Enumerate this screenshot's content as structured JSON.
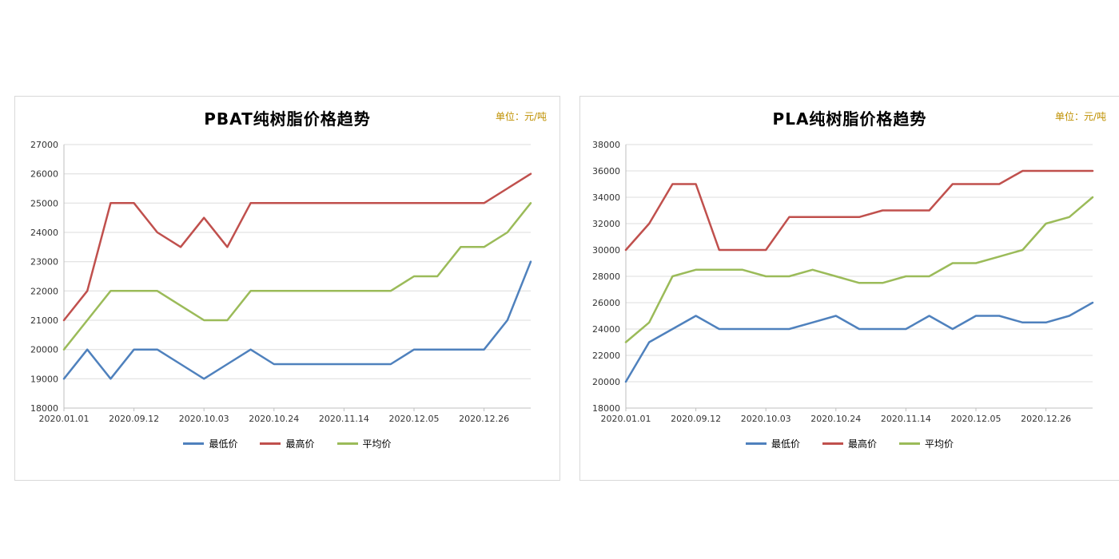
{
  "page": {
    "background": "#FFFFFF"
  },
  "chart_data": [
    {
      "type": "line",
      "title": "PBAT纯树脂价格趋势",
      "unit_label": "单位：元/吨",
      "ylim": [
        18000,
        27000
      ],
      "ytick_step": 1000,
      "grid": true,
      "legend_position": "bottom",
      "x_tick_labels": [
        "2020.01.01",
        "2020.09.12",
        "2020.10.03",
        "2020.10.24",
        "2020.11.14",
        "2020.12.05",
        "2020.12.26"
      ],
      "x_tick_indices": [
        0,
        3,
        6,
        9,
        12,
        15,
        18
      ],
      "series": [
        {
          "name": "最低价",
          "color": "#4F81BD",
          "values": [
            19000,
            20000,
            19000,
            20000,
            20000,
            19500,
            19000,
            19500,
            20000,
            19500,
            19500,
            19500,
            19500,
            19500,
            19500,
            20000,
            20000,
            20000,
            20000,
            21000,
            23000
          ]
        },
        {
          "name": "最高价",
          "color": "#C0504D",
          "values": [
            21000,
            22000,
            25000,
            25000,
            24000,
            23500,
            24500,
            23500,
            25000,
            25000,
            25000,
            25000,
            25000,
            25000,
            25000,
            25000,
            25000,
            25000,
            25000,
            25500,
            26000
          ]
        },
        {
          "name": "平均价",
          "color": "#9BBB59",
          "values": [
            20000,
            21000,
            22000,
            22000,
            22000,
            21500,
            21000,
            21000,
            22000,
            22000,
            22000,
            22000,
            22000,
            22000,
            22000,
            22500,
            22500,
            23500,
            23500,
            24000,
            25000
          ]
        }
      ]
    },
    {
      "type": "line",
      "title": "PLA纯树脂价格趋势",
      "unit_label": "单位：元/吨",
      "ylim": [
        18000,
        38000
      ],
      "ytick_step": 2000,
      "grid": true,
      "legend_position": "bottom",
      "x_tick_labels": [
        "2020.01.01",
        "2020.09.12",
        "2020.10.03",
        "2020.10.24",
        "2020.11.14",
        "2020.12.05",
        "2020.12.26"
      ],
      "x_tick_indices": [
        0,
        3,
        6,
        9,
        12,
        15,
        18
      ],
      "series": [
        {
          "name": "最低价",
          "color": "#4F81BD",
          "values": [
            20000,
            23000,
            24000,
            25000,
            24000,
            24000,
            24000,
            24000,
            24500,
            25000,
            24000,
            24000,
            24000,
            25000,
            24000,
            25000,
            25000,
            24500,
            24500,
            25000,
            26000
          ]
        },
        {
          "name": "最高价",
          "color": "#C0504D",
          "values": [
            30000,
            32000,
            35000,
            35000,
            30000,
            30000,
            30000,
            32500,
            32500,
            32500,
            32500,
            33000,
            33000,
            33000,
            35000,
            35000,
            35000,
            36000,
            36000,
            36000,
            36000
          ]
        },
        {
          "name": "平均价",
          "color": "#9BBB59",
          "values": [
            23000,
            24500,
            28000,
            28500,
            28500,
            28500,
            28000,
            28000,
            28500,
            28000,
            27500,
            27500,
            28000,
            28000,
            29000,
            29000,
            29500,
            30000,
            32000,
            32500,
            34000
          ]
        }
      ]
    }
  ]
}
